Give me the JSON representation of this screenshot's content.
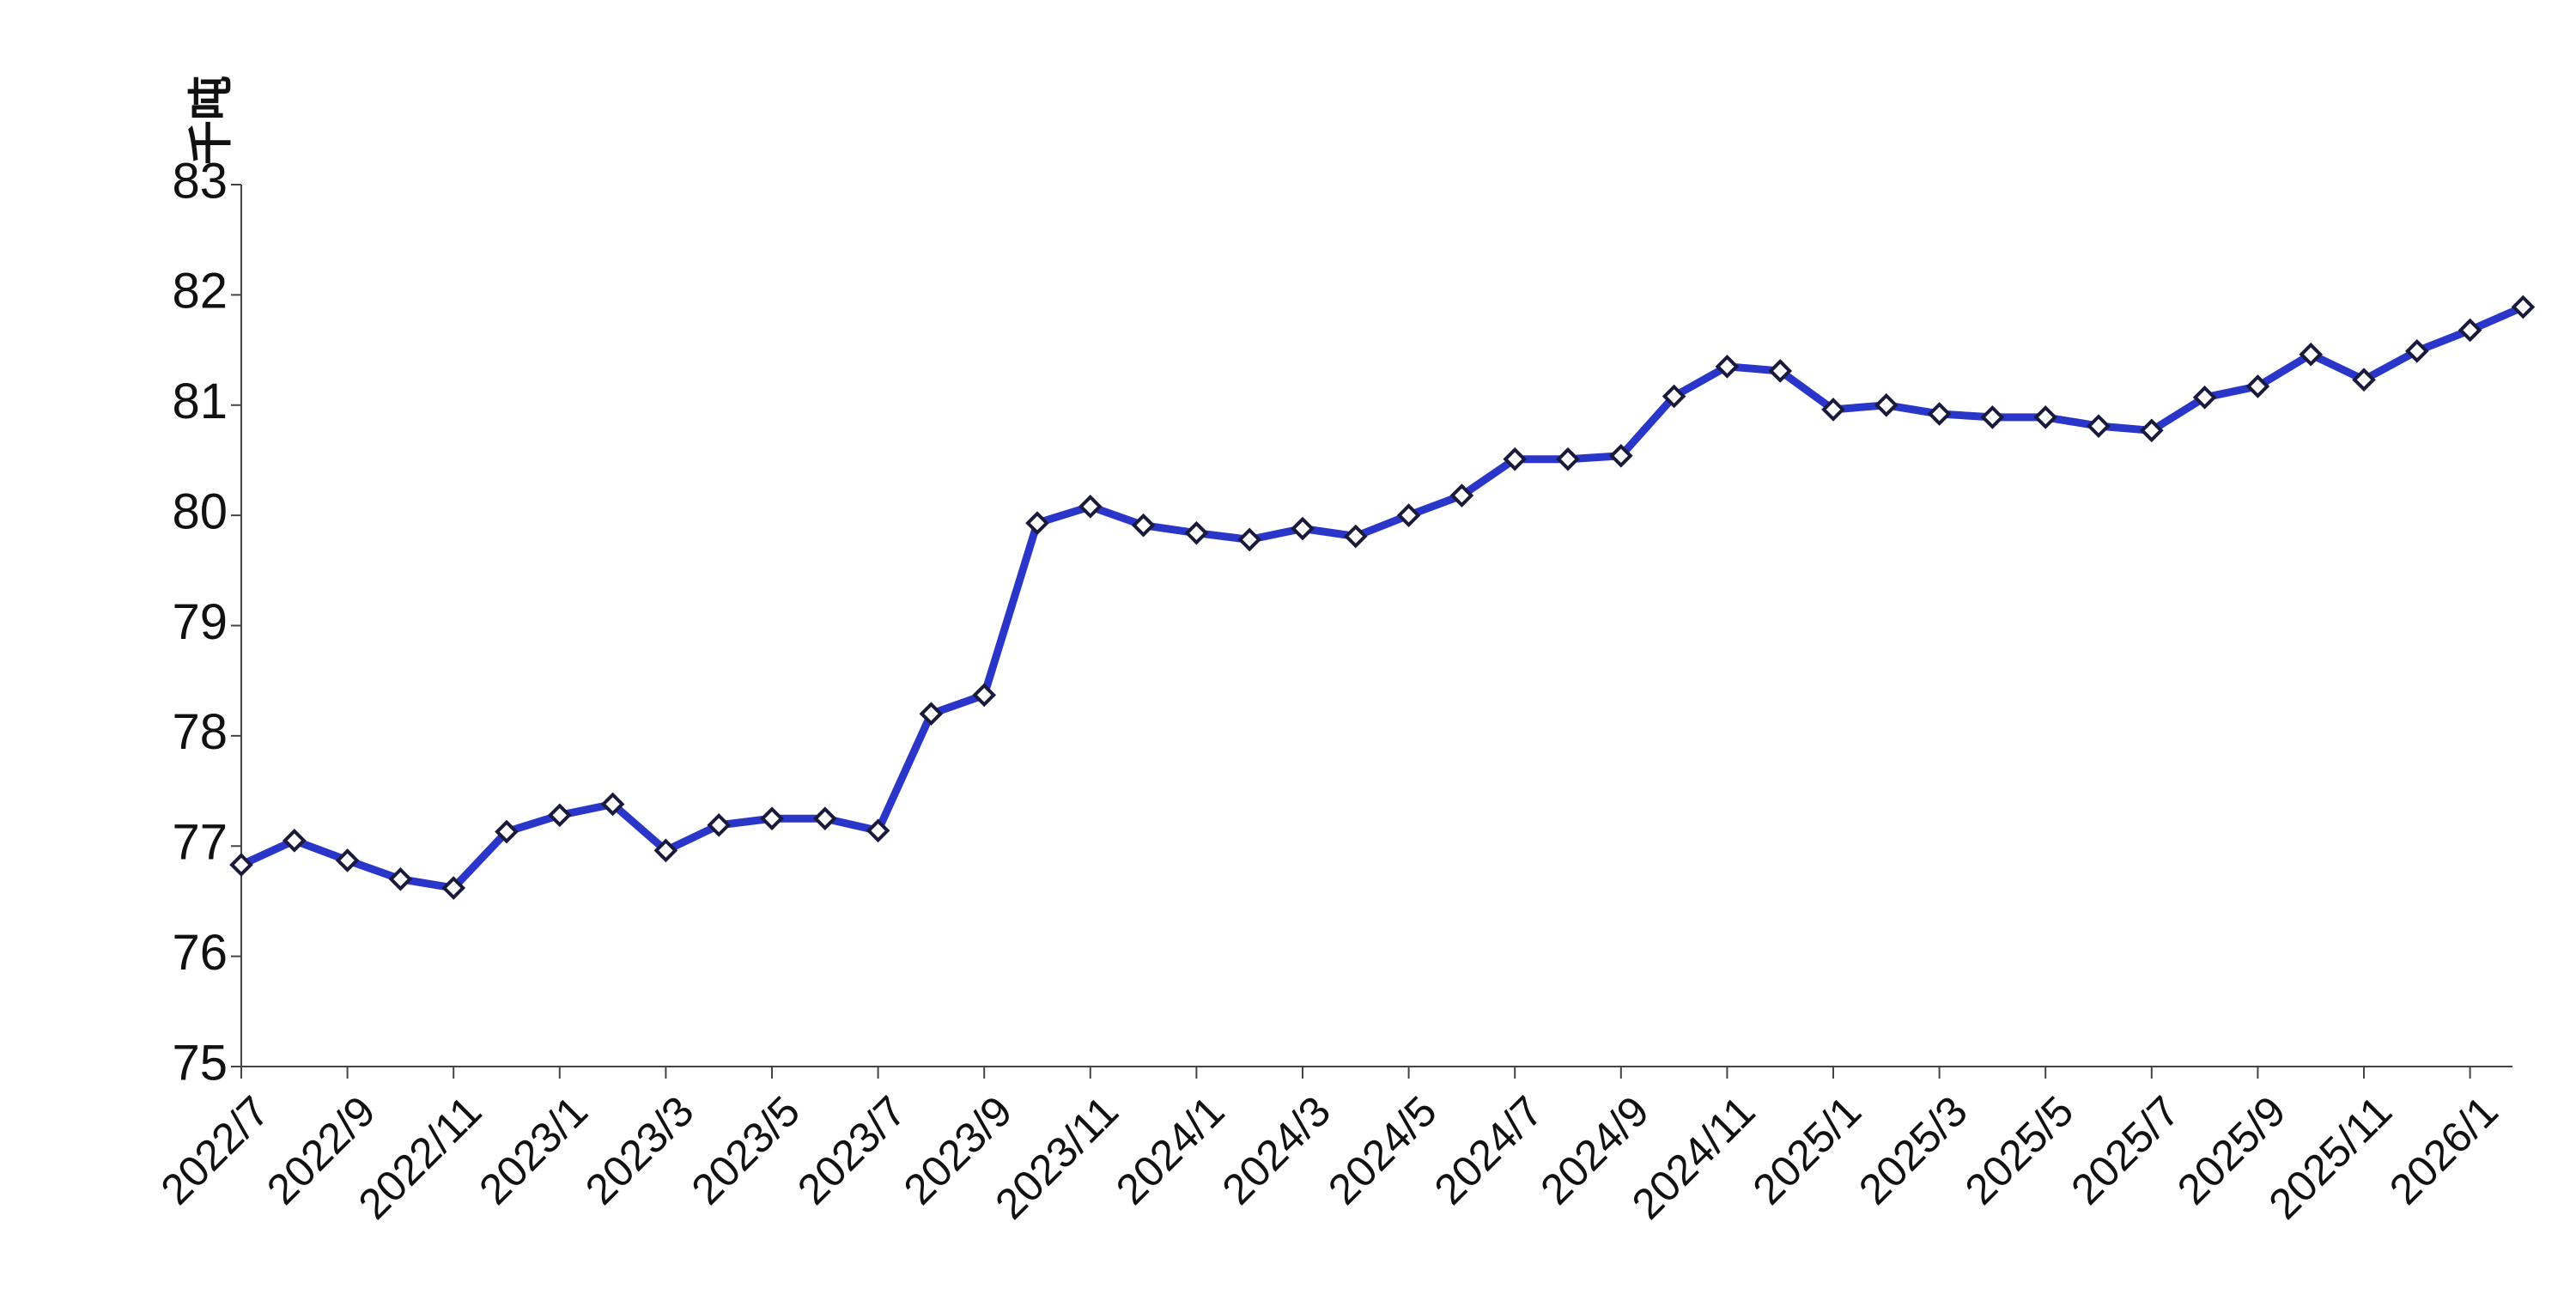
{
  "chart_data": {
    "type": "line",
    "y_label": "千吨",
    "categories": [
      "2022/7",
      null,
      "2022/9",
      null,
      "2022/11",
      null,
      "2023/1",
      null,
      "2023/3",
      null,
      "2023/5",
      null,
      "2023/7",
      null,
      "2023/9",
      null,
      "2023/11",
      null,
      "2024/1",
      null,
      "2024/3",
      null,
      "2024/5",
      null,
      "2024/7",
      null,
      "2024/9",
      null,
      "2024/11",
      null,
      "2025/1",
      null,
      "2025/3",
      null,
      "2025/5",
      null,
      "2025/7",
      null,
      "2025/9",
      null,
      "2025/11",
      null,
      "2026/1",
      null
    ],
    "values": [
      76.83,
      77.05,
      76.87,
      76.7,
      76.62,
      77.13,
      77.28,
      77.38,
      76.96,
      77.19,
      77.25,
      77.25,
      77.14,
      78.2,
      78.37,
      79.93,
      80.08,
      79.91,
      79.84,
      79.78,
      79.88,
      79.81,
      80.0,
      80.18,
      80.51,
      80.51,
      80.54,
      81.08,
      81.35,
      81.31,
      80.96,
      81.0,
      80.92,
      80.89,
      80.89,
      80.81,
      80.77,
      81.07,
      81.17,
      81.46,
      81.23,
      81.49,
      81.68,
      81.89
    ],
    "color": "#2a36c9",
    "marker_color": "#ffffff",
    "ylim": [
      75,
      83
    ],
    "yticks": [
      75,
      76,
      77,
      78,
      79,
      80,
      81,
      82,
      83
    ]
  }
}
